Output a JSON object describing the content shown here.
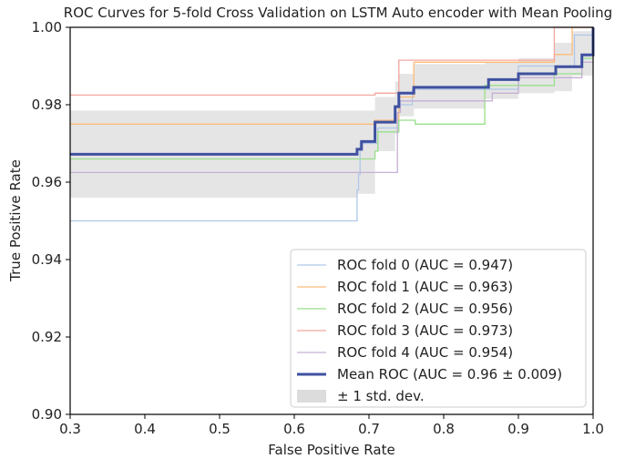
{
  "chart_data": {
    "type": "line",
    "title": "ROC Curves for 5-fold Cross Validation on LSTM Auto encoder with Mean Pooling",
    "xlabel": "False Positive Rate",
    "ylabel": "True Positive Rate",
    "xlim": [
      0.3,
      1.0
    ],
    "ylim": [
      0.9,
      1.0
    ],
    "xticks": [
      "0.3",
      "0.4",
      "0.5",
      "0.6",
      "0.7",
      "0.8",
      "0.9",
      "1.0"
    ],
    "yticks": [
      "0.90",
      "0.92",
      "0.94",
      "0.96",
      "0.98",
      "1.00"
    ],
    "grid": false,
    "legend_position": "lower-right",
    "series": [
      {
        "name": "ROC fold 0 (AUC = 0.947)",
        "color": "#aec7e8",
        "width": 1.3,
        "x": [
          0.3,
          0.684,
          0.684,
          0.686,
          0.686,
          0.688,
          0.688,
          0.712,
          0.712,
          0.74,
          0.74,
          0.758,
          0.758,
          0.9,
          0.9,
          0.975,
          0.975,
          1.0
        ],
        "y": [
          0.95,
          0.95,
          0.958,
          0.958,
          0.962,
          0.962,
          0.97,
          0.97,
          0.974,
          0.974,
          0.98,
          0.98,
          0.984,
          0.984,
          0.99,
          0.99,
          0.998,
          0.998
        ]
      },
      {
        "name": "ROC fold 1 (AUC = 0.963)",
        "color": "#ffbb78",
        "width": 1.3,
        "x": [
          0.3,
          0.708,
          0.708,
          0.74,
          0.74,
          0.76,
          0.76,
          0.948,
          0.948,
          0.972,
          0.972,
          1.0
        ],
        "y": [
          0.975,
          0.975,
          0.976,
          0.976,
          0.982,
          0.982,
          0.991,
          0.991,
          0.993,
          0.993,
          1.0,
          1.0
        ]
      },
      {
        "name": "ROC fold 2 (AUC = 0.956)",
        "color": "#98df8a",
        "width": 1.3,
        "x": [
          0.3,
          0.708,
          0.708,
          0.712,
          0.712,
          0.74,
          0.74,
          0.762,
          0.762,
          0.855,
          0.855,
          0.948,
          0.948,
          0.985,
          0.985,
          1.0
        ],
        "y": [
          0.966,
          0.966,
          0.968,
          0.968,
          0.973,
          0.973,
          0.976,
          0.976,
          0.975,
          0.975,
          0.985,
          0.985,
          0.988,
          0.988,
          0.992,
          0.992
        ]
      },
      {
        "name": "ROC fold 3 (AUC = 0.973)",
        "color": "#f3a79f",
        "width": 1.3,
        "x": [
          0.3,
          0.708,
          0.708,
          0.74,
          0.74,
          0.76,
          0.76,
          0.948,
          0.948,
          0.97,
          0.97,
          1.0
        ],
        "y": [
          0.9825,
          0.9825,
          0.983,
          0.983,
          0.9915,
          0.9915,
          0.9915,
          0.9915,
          1.0,
          1.0,
          1.0,
          1.0
        ]
      },
      {
        "name": "ROC fold 4 (AUC = 0.954)",
        "color": "#c5b0d5",
        "width": 1.3,
        "x": [
          0.3,
          0.738,
          0.738,
          0.742,
          0.742,
          0.762,
          0.762,
          0.865,
          0.865,
          0.9,
          0.9,
          0.985,
          0.985,
          1.0
        ],
        "y": [
          0.9625,
          0.9625,
          0.978,
          0.978,
          0.981,
          0.981,
          0.981,
          0.981,
          0.983,
          0.983,
          0.987,
          0.987,
          0.991,
          0.991
        ]
      },
      {
        "name": "Mean ROC (AUC = 0.96 ± 0.009)",
        "color": "#3f51a0",
        "width": 3,
        "x": [
          0.3,
          0.684,
          0.684,
          0.69,
          0.69,
          0.708,
          0.708,
          0.735,
          0.735,
          0.74,
          0.74,
          0.76,
          0.76,
          0.82,
          0.82,
          0.86,
          0.86,
          0.9,
          0.9,
          0.95,
          0.95,
          0.985,
          0.985,
          1.0,
          1.0
        ],
        "y": [
          0.9672,
          0.9672,
          0.9685,
          0.9685,
          0.9705,
          0.9705,
          0.9755,
          0.9755,
          0.9795,
          0.9795,
          0.983,
          0.983,
          0.9845,
          0.9845,
          0.9845,
          0.9845,
          0.9865,
          0.9865,
          0.988,
          0.988,
          0.9898,
          0.9898,
          0.9929,
          0.9929,
          1.0
        ]
      }
    ],
    "std_band": {
      "name": "± 1 std. dev.",
      "color": "#d3d3d3",
      "x": [
        0.3,
        0.44,
        0.44,
        0.684,
        0.684,
        0.708,
        0.708,
        0.735,
        0.735,
        0.74,
        0.74,
        0.76,
        0.76,
        0.855,
        0.855,
        0.9,
        0.9,
        0.948,
        0.948,
        0.972,
        0.972,
        1.0
      ],
      "upper": [
        0.9785,
        0.9785,
        0.9785,
        0.9785,
        0.9785,
        0.9785,
        0.982,
        0.982,
        0.986,
        0.986,
        0.988,
        0.988,
        0.9905,
        0.9905,
        0.991,
        0.991,
        0.992,
        0.992,
        0.996,
        0.996,
        0.999,
        0.999
      ],
      "lower": [
        0.956,
        0.956,
        0.956,
        0.956,
        0.957,
        0.957,
        0.968,
        0.968,
        0.9725,
        0.9725,
        0.977,
        0.977,
        0.979,
        0.979,
        0.9815,
        0.9815,
        0.983,
        0.983,
        0.9835,
        0.9835,
        0.9875,
        0.9875
      ]
    }
  }
}
